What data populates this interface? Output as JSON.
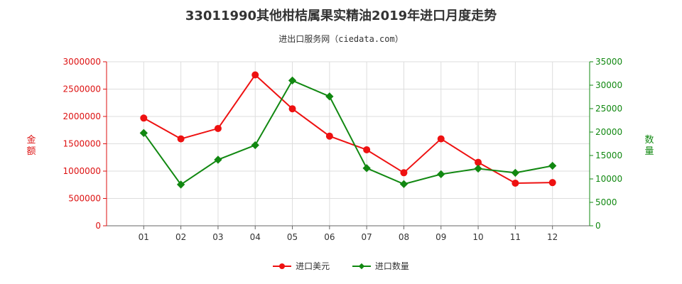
{
  "title": "33011990其他柑桔属果实精油2019年进口月度走势",
  "subtitle": "进出口服务网（ciedata.com）",
  "left_axis_label": "金额",
  "right_axis_label": "数量",
  "chart_data": {
    "type": "line",
    "categories": [
      "01",
      "02",
      "03",
      "04",
      "05",
      "06",
      "07",
      "08",
      "09",
      "10",
      "11",
      "12"
    ],
    "series": [
      {
        "name": "进口美元",
        "axis": "left",
        "color": "#ee1111",
        "values": [
          1970000,
          1590000,
          1780000,
          2760000,
          2140000,
          1640000,
          1390000,
          970000,
          1590000,
          1160000,
          780000,
          790000
        ]
      },
      {
        "name": "进口数量",
        "axis": "right",
        "color": "#118811",
        "values": [
          19800,
          8800,
          14100,
          17200,
          31000,
          27600,
          12300,
          8900,
          11000,
          12200,
          11300,
          12800
        ]
      }
    ],
    "left_axis": {
      "min": 0,
      "max": 3000000,
      "ticks": [
        0,
        500000,
        1000000,
        1500000,
        2000000,
        2500000,
        3000000
      ],
      "color": "#dd1111"
    },
    "right_axis": {
      "min": 0,
      "max": 35000,
      "ticks": [
        0,
        5000,
        10000,
        15000,
        20000,
        25000,
        30000,
        35000
      ],
      "color": "#118811"
    },
    "grid": true,
    "legend_position": "bottom"
  }
}
